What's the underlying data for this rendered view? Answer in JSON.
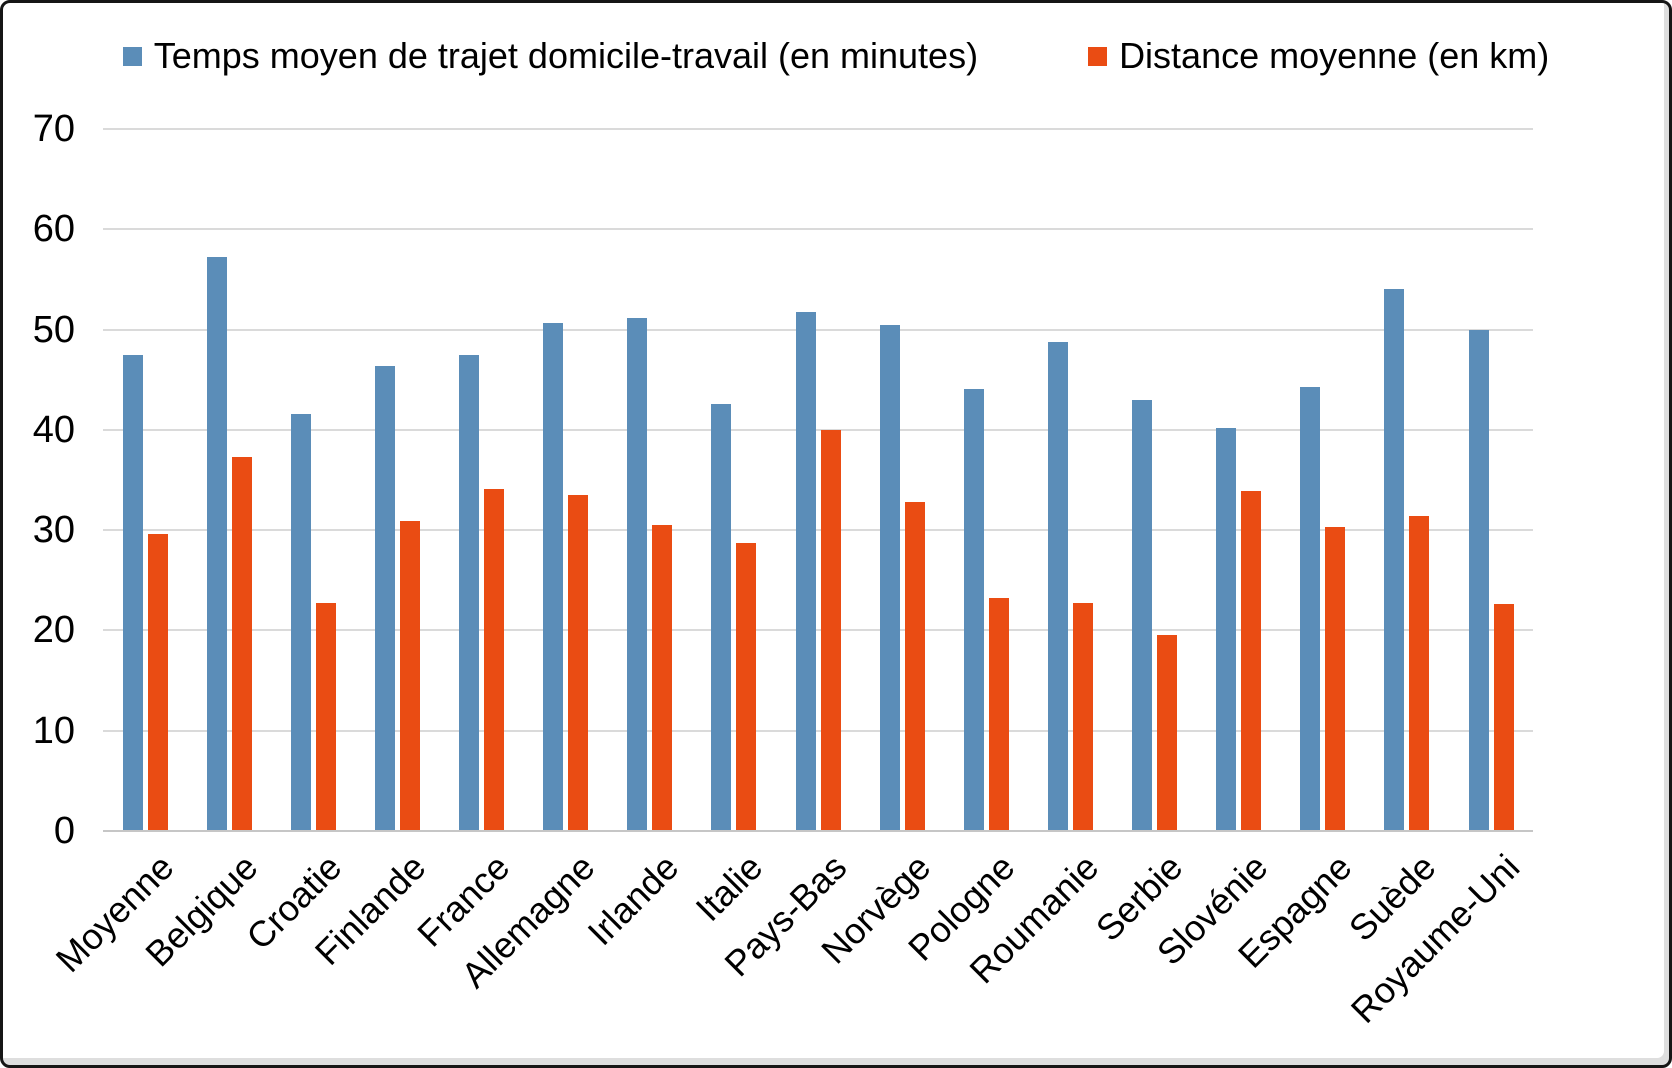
{
  "chart_data": {
    "type": "bar",
    "categories": [
      "Moyenne",
      "Belgique",
      "Croatie",
      "Finlande",
      "France",
      "Allemagne",
      "Irlande",
      "Italie",
      "Pays-Bas",
      "Norvège",
      "Pologne",
      "Roumanie",
      "Serbie",
      "Slovénie",
      "Espagne",
      "Suède",
      "Royaume-Uni"
    ],
    "series": [
      {
        "name": "Temps moyen de trajet domicile-travail (en minutes)",
        "color": "#5b8db8",
        "values": [
          47.5,
          57.2,
          41.6,
          46.4,
          47.5,
          50.7,
          51.2,
          42.6,
          51.8,
          50.5,
          44.1,
          48.8,
          43.0,
          40.2,
          44.3,
          54.0,
          50.0
        ]
      },
      {
        "name": "Distance moyenne (en km)",
        "color": "#ea4c13",
        "values": [
          29.6,
          37.3,
          22.7,
          30.9,
          34.1,
          33.5,
          30.5,
          28.7,
          40.0,
          32.8,
          23.2,
          22.7,
          19.5,
          33.9,
          30.3,
          31.4,
          22.6
        ]
      }
    ],
    "title": "",
    "xlabel": "",
    "ylabel": "",
    "ylim": [
      0,
      70
    ],
    "yticks": [
      0,
      10,
      20,
      30,
      40,
      50,
      60,
      70
    ],
    "grid": true,
    "legend_position": "top",
    "gridline_color": "#dadada",
    "axis_line_color": "#c6c6c6",
    "text_color": "#000000",
    "background_color": "#ffffff"
  }
}
